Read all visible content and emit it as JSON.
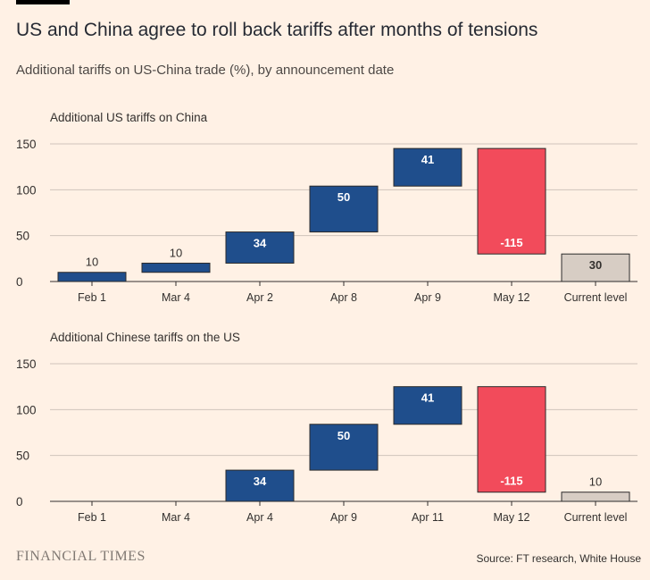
{
  "header": {
    "title": "US and China agree to roll back tariffs after months of tensions",
    "subtitle": "Additional tariffs on US-China trade (%), by announcement date"
  },
  "footer": {
    "brand": "FINANCIAL TIMES",
    "source": "Source: FT research, White House"
  },
  "colors": {
    "increase": "#1f4e8c",
    "decrease": "#f24b5b",
    "total": "#d7cdc4",
    "gridline": "#cfc4bb"
  },
  "chart_data": [
    {
      "type": "bar",
      "subtype": "waterfall",
      "title": "Additional US tariffs on China",
      "categories": [
        "Feb 1",
        "Mar 4",
        "Apr 2",
        "Apr 8",
        "Apr 9",
        "May 12",
        "Current level"
      ],
      "values": [
        10,
        10,
        34,
        50,
        41,
        -115,
        30
      ],
      "value_labels": [
        "10",
        "10",
        "34",
        "50",
        "41",
        "-115",
        "30"
      ],
      "kinds": [
        "increase",
        "increase",
        "increase",
        "increase",
        "increase",
        "decrease",
        "total"
      ],
      "ylim": [
        0,
        150
      ],
      "yticks": [
        0,
        50,
        100,
        150
      ],
      "grid": true
    },
    {
      "type": "bar",
      "subtype": "waterfall",
      "title": "Additional Chinese tariffs on the US",
      "categories": [
        "Feb 1",
        "Mar 4",
        "Apr 4",
        "Apr 9",
        "Apr 11",
        "May 12",
        "Current level"
      ],
      "values": [
        0,
        0,
        34,
        50,
        41,
        -115,
        10
      ],
      "value_labels": [
        "",
        "",
        "34",
        "50",
        "41",
        "-115",
        "10"
      ],
      "kinds": [
        "increase",
        "increase",
        "increase",
        "increase",
        "increase",
        "decrease",
        "total"
      ],
      "ylim": [
        0,
        150
      ],
      "yticks": [
        0,
        50,
        100,
        150
      ],
      "grid": true
    }
  ]
}
